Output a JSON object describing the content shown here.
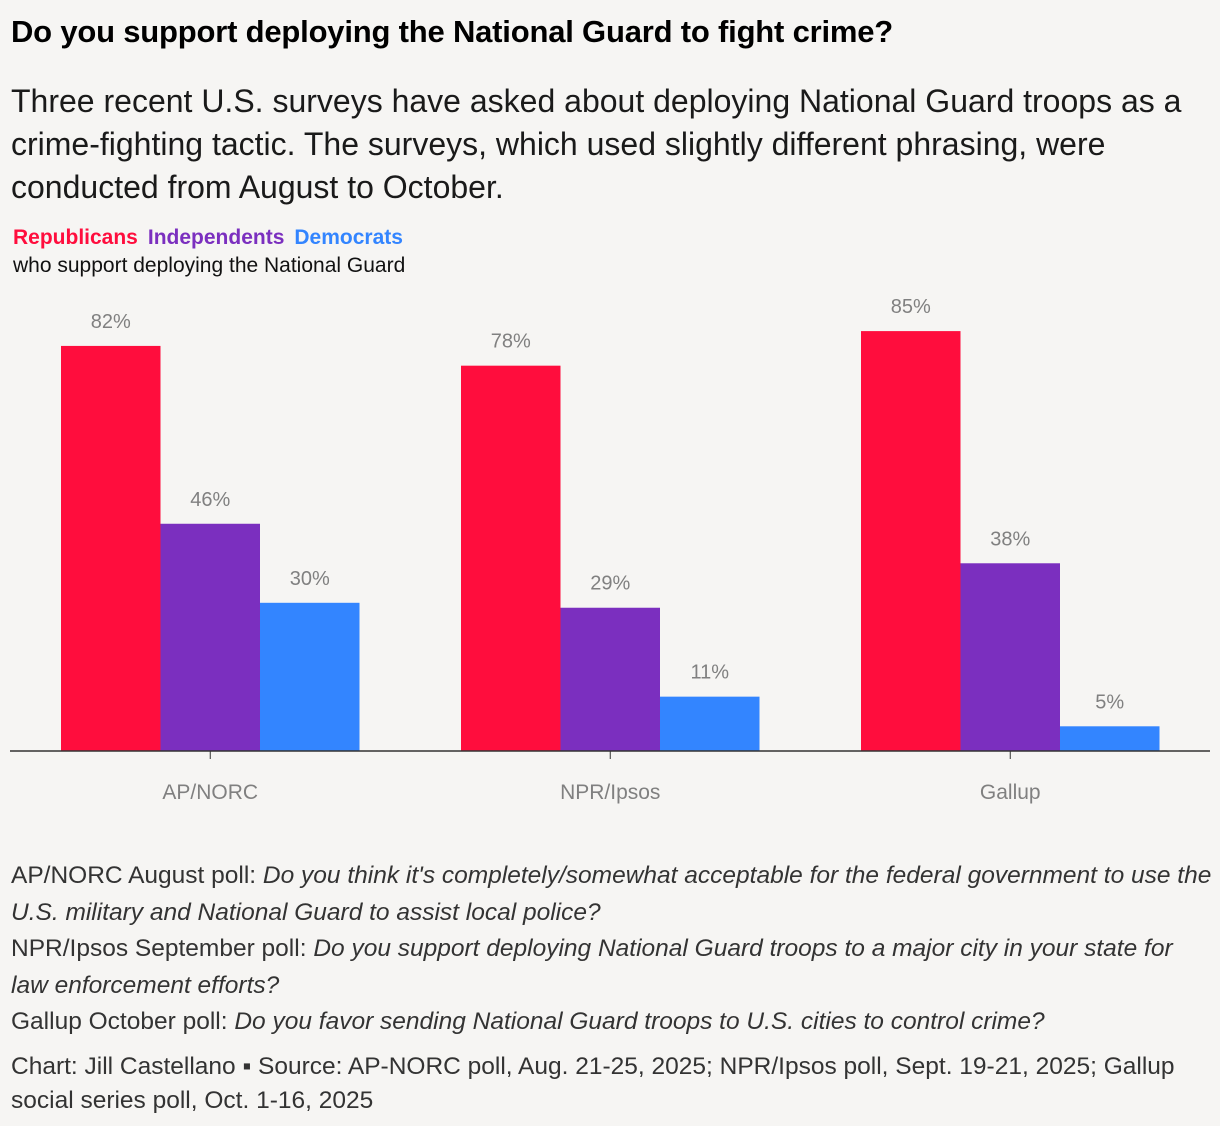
{
  "title": "Do you support deploying the National Guard to fight crime?",
  "subtitle": "Three recent U.S. surveys have asked about deploying National Guard troops as a crime-fighting tactic. The surveys, which used slightly different phrasing, were conducted from August to October.",
  "legend": {
    "note": "who support deploying the National Guard"
  },
  "colors": {
    "republicans": "#ff0d3d",
    "independents": "#7b2fbf",
    "democrats": "#3385ff",
    "label": "#808080"
  },
  "chart_data": {
    "type": "bar",
    "categories": [
      "AP/NORC",
      "NPR/Ipsos",
      "Gallup"
    ],
    "series": [
      {
        "name": "Republicans",
        "values": [
          82,
          78,
          85
        ],
        "color": "#ff0d3d"
      },
      {
        "name": "Independents",
        "values": [
          46,
          29,
          38
        ],
        "color": "#7b2fbf"
      },
      {
        "name": "Democrats",
        "values": [
          30,
          11,
          5
        ],
        "color": "#3385ff"
      }
    ],
    "value_suffix": "%",
    "ylim": [
      0,
      100
    ],
    "grid": false,
    "legend_position": "top-left"
  },
  "notes": [
    {
      "poll": "AP/NORC August poll: ",
      "question": "Do you think it's completely/somewhat acceptable for the federal government to use the U.S. military and National Guard to assist local police?"
    },
    {
      "poll": "NPR/Ipsos September poll: ",
      "question": "Do you support deploying National Guard troops to a major city in your state for law enforcement efforts?"
    },
    {
      "poll": "Gallup October poll: ",
      "question": "Do you favor sending National Guard troops to U.S. cities to control crime?"
    }
  ],
  "credit": "Chart: Jill Castellano ▪ Source: AP-NORC poll, Aug. 21-25, 2025; NPR/Ipsos poll, Sept. 19-21, 2025; Gallup social series poll, Oct. 1-16, 2025"
}
